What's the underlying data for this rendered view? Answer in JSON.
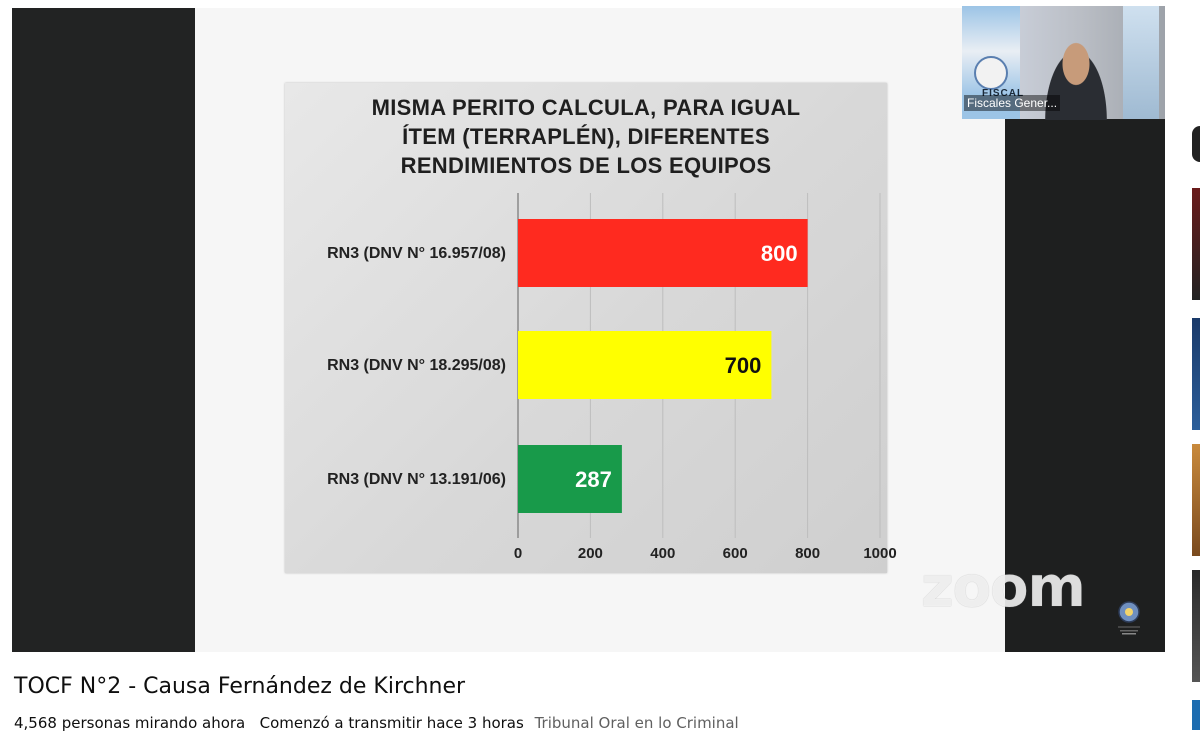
{
  "video": {
    "title": "TOCF N°2 - Causa Fernández de Kirchner",
    "viewers": "4,568 personas mirando ahora",
    "started": "Comenzó a transmitir hace 3 horas",
    "channel": "Tribunal Oral en lo Criminal"
  },
  "webcam": {
    "label": "Fiscales Gener...",
    "wall_text": "FISCAL"
  },
  "watermark": "zoom",
  "chart_data": {
    "type": "bar",
    "orientation": "horizontal",
    "title": "MISMA PERITO CALCULA, PARA IGUAL ÍTEM (TERRAPLÉN), DIFERENTES RENDIMIENTOS DE LOS EQUIPOS",
    "title_lines": [
      "MISMA PERITO CALCULA, PARA IGUAL",
      "ÍTEM (TERRAPLÉN), DIFERENTES",
      "RENDIMIENTOS DE LOS EQUIPOS"
    ],
    "categories": [
      "RN3 (DNV N° 16.957/08)",
      "RN3 (DNV N° 18.295/08)",
      "RN3 (DNV N° 13.191/06)"
    ],
    "values": [
      800,
      700,
      287
    ],
    "value_labels": [
      "800",
      "700",
      "287"
    ],
    "colors": [
      "#ff2a1f",
      "#ffff00",
      "#189a4a"
    ],
    "label_colors": [
      "#ffffff",
      "#111111",
      "#ffffff"
    ],
    "xlim": [
      0,
      1000
    ],
    "ticks": [
      0,
      200,
      400,
      600,
      800,
      1000
    ],
    "tick_labels": [
      "0",
      "200",
      "400",
      "600",
      "800",
      "1000"
    ],
    "grid": true
  }
}
